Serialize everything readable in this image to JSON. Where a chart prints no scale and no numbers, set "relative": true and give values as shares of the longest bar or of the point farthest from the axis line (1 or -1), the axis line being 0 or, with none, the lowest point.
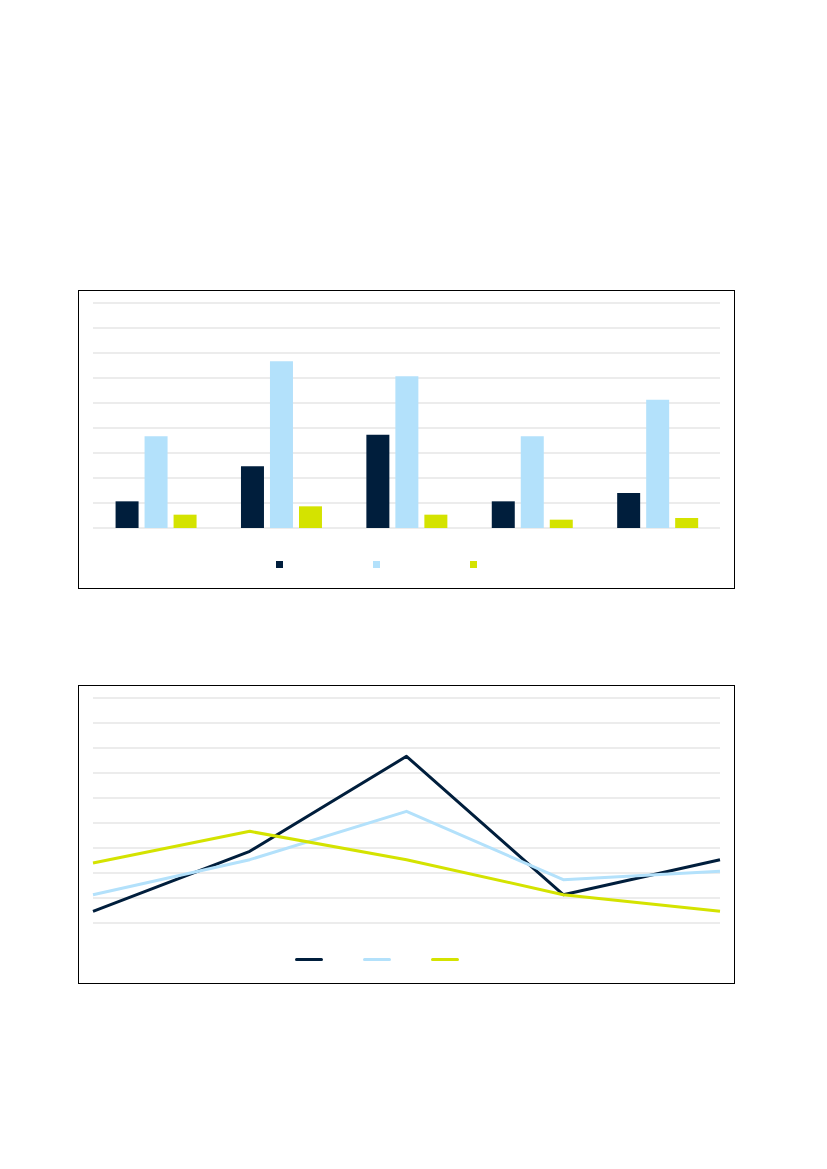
{
  "chart_data": [
    {
      "type": "bar",
      "relative": true,
      "categories": [
        null,
        null,
        null,
        null,
        null
      ],
      "grid": "y",
      "series": [
        {
          "color": "#001e3c",
          "values": [
            0.16,
            0.37,
            0.56,
            0.16,
            0.21
          ]
        },
        {
          "color": "#b3e1fb",
          "values": [
            0.55,
            1,
            0.91,
            0.55,
            0.77
          ]
        },
        {
          "color": "#d4e300",
          "values": [
            0.08,
            0.13,
            0.08,
            0.05,
            0.06
          ]
        }
      ]
    },
    {
      "type": "line",
      "relative": true,
      "categories": [
        null,
        null,
        null,
        null,
        null
      ],
      "grid": "y",
      "marker": "none",
      "series": [
        {
          "color": "#001e3c",
          "values": [
            0.07,
            0.43,
            1,
            0.17,
            0.38
          ]
        },
        {
          "color": "#b3e1fb",
          "values": [
            0.17,
            0.38,
            0.67,
            0.26,
            0.31
          ]
        },
        {
          "color": "#d4e300",
          "values": [
            0.36,
            0.55,
            0.38,
            0.17,
            0.07
          ]
        }
      ]
    }
  ]
}
